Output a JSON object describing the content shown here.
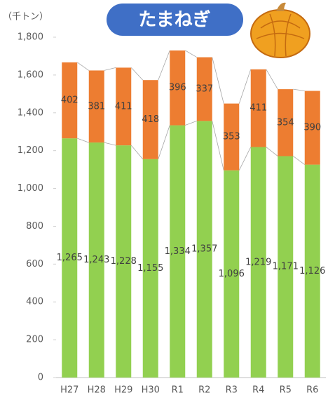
{
  "chart_data": {
    "type": "stacked_bar",
    "title": "たまねぎ",
    "y_label": "（千トン）",
    "categories": [
      "H27",
      "H28",
      "H29",
      "H30",
      "R1",
      "R2",
      "R3",
      "R4",
      "R5",
      "R6"
    ],
    "series": [
      {
        "color": "#92d050",
        "values": [
          1265,
          1243,
          1228,
          1155,
          1334,
          1357,
          1096,
          1219,
          1171,
          1126
        ],
        "value_labels": [
          "1,265",
          "1,243",
          "1,228",
          "1,155",
          "1,334",
          "1,357",
          "1,096",
          "1,219",
          "1,171",
          "1,126"
        ]
      },
      {
        "color": "#ed7d31",
        "values": [
          402,
          381,
          411,
          418,
          396,
          337,
          353,
          411,
          354,
          390
        ]
      }
    ],
    "ylim": [
      0,
      1800
    ],
    "yticks": [
      0,
      200,
      400,
      600,
      800,
      {
        "value": 1000,
        "label": "1,000"
      },
      {
        "value": 1200,
        "label": "1,200"
      },
      {
        "value": 1400,
        "label": "1,400"
      },
      {
        "value": 1600,
        "label": "1,600"
      },
      {
        "value": 1800,
        "label": "1,800"
      }
    ]
  }
}
